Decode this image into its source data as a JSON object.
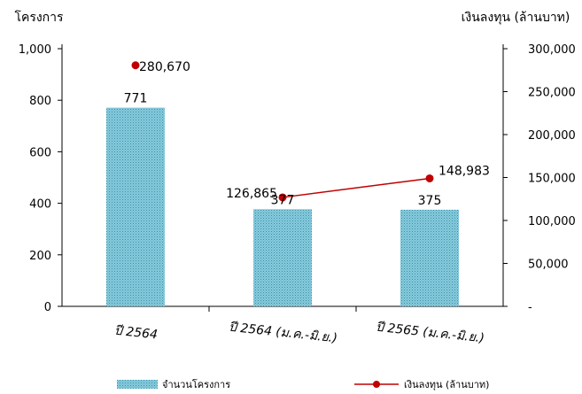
{
  "chart_data": {
    "type": "bar",
    "categories": [
      "ปี 2564",
      "ปี 2564 (ม.ค.-มิ.ย.)",
      "ปี 2565 (ม.ค.-มิ.ย.)"
    ],
    "series": [
      {
        "name": "จำนวนโครงการ",
        "type": "bar",
        "axis": "left",
        "values": [
          771,
          377,
          375
        ],
        "labels": [
          "771",
          "377",
          "375"
        ],
        "color": "#7fc7d9"
      },
      {
        "name": "เงินลงทุน (ล้านบาท)",
        "type": "line",
        "axis": "right",
        "values": [
          280670,
          126865,
          148983
        ],
        "labels": [
          "280,670",
          "126,865",
          "148,983"
        ],
        "color": "#c00000"
      }
    ],
    "ylabel_left": "โครงการ",
    "ylabel_right": "เงินลงทุน (ล้านบาท)",
    "ylim_left": [
      0,
      1000
    ],
    "ylim_right": [
      0,
      300000
    ],
    "yticks_left": [
      "0",
      "200",
      "400",
      "600",
      "800",
      "1,000"
    ],
    "yticks_right": [
      "-",
      "50,000",
      "100,000",
      "150,000",
      "200,000",
      "250,000",
      "300,000"
    ],
    "grid": false,
    "legend_position": "bottom"
  }
}
